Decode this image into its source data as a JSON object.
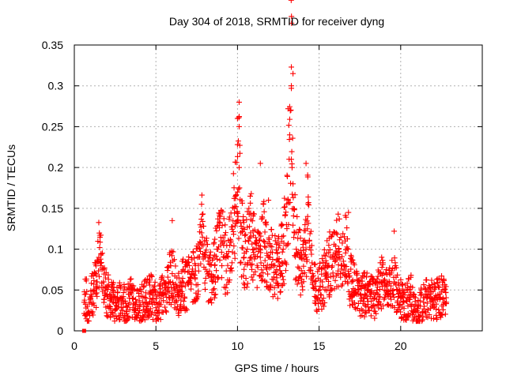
{
  "chart_data": {
    "type": "scatter",
    "title": "Day 304 of 2018, SRMTID for receiver dyng",
    "xlabel": "GPS time / hours",
    "ylabel": "SRMTID / TECUs",
    "xlim": [
      0,
      25
    ],
    "ylim": [
      0,
      0.35
    ],
    "x_ticks": [
      0,
      5,
      10,
      15,
      20
    ],
    "y_ticks": [
      0,
      0.05,
      0.1,
      0.15,
      0.2,
      0.25,
      0.3,
      0.35
    ],
    "x_tick_labels": [
      "0",
      "5",
      "10",
      "15",
      "20"
    ],
    "y_tick_labels": [
      "0",
      "0.05",
      "0.1",
      "0.15",
      "0.2",
      "0.25",
      "0.3",
      "0.35"
    ],
    "grid": true,
    "marker": "plus",
    "marker_color": "#ff0000",
    "series": [
      {
        "name": "SRMTID",
        "x": [
          0.6,
          0.7,
          0.8,
          1.0,
          1.2,
          1.4,
          1.5,
          1.6,
          1.7,
          1.8,
          1.9,
          2.0,
          2.2,
          2.4,
          2.6,
          2.8,
          3.0,
          3.2,
          3.4,
          3.6,
          3.8,
          4.0,
          4.2,
          4.4,
          4.6,
          4.8,
          5.0,
          5.2,
          5.4,
          5.6,
          5.8,
          6.0,
          6.2,
          6.4,
          6.6,
          6.8,
          7.0,
          7.2,
          7.4,
          7.6,
          7.8,
          8.0,
          8.2,
          8.4,
          8.6,
          8.8,
          9.0,
          9.2,
          9.4,
          9.6,
          9.8,
          10.0,
          10.1,
          10.2,
          10.4,
          10.6,
          10.8,
          11.0,
          11.2,
          11.4,
          11.6,
          11.8,
          12.0,
          12.2,
          12.4,
          12.6,
          12.8,
          13.0,
          13.1,
          13.2,
          13.3,
          13.4,
          13.5,
          13.6,
          13.8,
          14.0,
          14.2,
          14.3,
          14.4,
          14.6,
          14.8,
          15.0,
          15.2,
          15.4,
          15.6,
          15.8,
          16.0,
          16.2,
          16.4,
          16.6,
          16.8,
          17.0,
          17.2,
          17.4,
          17.6,
          17.8,
          18.0,
          18.2,
          18.4,
          18.6,
          18.8,
          19.0,
          19.2,
          19.4,
          19.6,
          19.8,
          20.0,
          20.2,
          20.4,
          20.6,
          20.8,
          21.0,
          21.2,
          21.4,
          21.6,
          21.8,
          22.0,
          22.2,
          22.4,
          22.6,
          22.8
        ],
        "y": [
          0.035,
          0.045,
          0.03,
          0.04,
          0.05,
          0.06,
          0.09,
          0.08,
          0.075,
          0.06,
          0.05,
          0.045,
          0.04,
          0.035,
          0.03,
          0.04,
          0.035,
          0.03,
          0.045,
          0.04,
          0.035,
          0.03,
          0.035,
          0.04,
          0.045,
          0.04,
          0.035,
          0.03,
          0.045,
          0.05,
          0.06,
          0.07,
          0.05,
          0.045,
          0.06,
          0.055,
          0.06,
          0.07,
          0.065,
          0.08,
          0.12,
          0.09,
          0.07,
          0.065,
          0.08,
          0.1,
          0.11,
          0.09,
          0.08,
          0.11,
          0.15,
          0.17,
          0.2,
          0.12,
          0.09,
          0.1,
          0.12,
          0.1,
          0.08,
          0.09,
          0.11,
          0.095,
          0.09,
          0.08,
          0.075,
          0.08,
          0.1,
          0.13,
          0.16,
          0.24,
          0.3,
          0.18,
          0.12,
          0.1,
          0.09,
          0.07,
          0.1,
          0.14,
          0.11,
          0.07,
          0.05,
          0.05,
          0.06,
          0.07,
          0.08,
          0.09,
          0.095,
          0.1,
          0.08,
          0.11,
          0.07,
          0.06,
          0.05,
          0.045,
          0.04,
          0.045,
          0.05,
          0.045,
          0.04,
          0.045,
          0.06,
          0.05,
          0.045,
          0.055,
          0.06,
          0.05,
          0.04,
          0.035,
          0.04,
          0.045,
          0.03,
          0.025,
          0.03,
          0.035,
          0.04,
          0.045,
          0.035,
          0.04,
          0.045,
          0.04,
          0.035
        ]
      }
    ],
    "outliers": [
      {
        "x": 13.3,
        "y": 0.323
      },
      {
        "x": 13.4,
        "y": 0.315
      },
      {
        "x": 13.3,
        "y": 0.297
      },
      {
        "x": 13.1,
        "y": 0.272
      },
      {
        "x": 13.2,
        "y": 0.259
      },
      {
        "x": 10.1,
        "y": 0.28
      },
      {
        "x": 10.0,
        "y": 0.26
      },
      {
        "x": 10.1,
        "y": 0.25
      },
      {
        "x": 10.0,
        "y": 0.228
      },
      {
        "x": 14.2,
        "y": 0.205
      },
      {
        "x": 11.4,
        "y": 0.205
      },
      {
        "x": 13.3,
        "y": 0.21
      },
      {
        "x": 11.9,
        "y": 0.16
      },
      {
        "x": 7.8,
        "y": 0.155
      },
      {
        "x": 16.8,
        "y": 0.145
      },
      {
        "x": 6.0,
        "y": 0.135
      },
      {
        "x": 19.6,
        "y": 0.122
      }
    ],
    "special_marker": {
      "x": 0.6,
      "y": 0.0,
      "shape": "square"
    }
  }
}
